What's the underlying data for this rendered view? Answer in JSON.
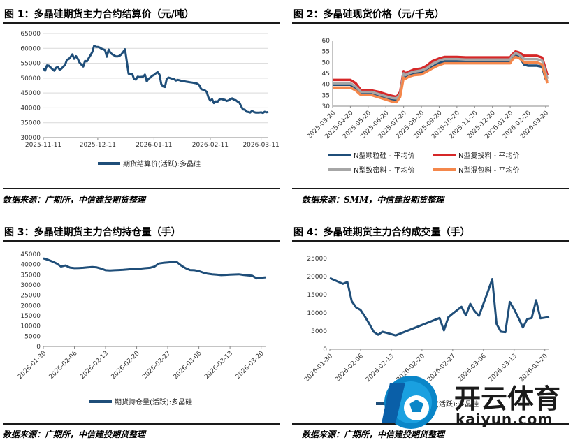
{
  "panels": [
    {
      "title": "图 1：多晶硅期货主力合约结算价（元/吨）",
      "source": "数据来源：广期所，中信建投期货整理"
    },
    {
      "title": "图 2：多晶硅现货价格（元/千克）",
      "source": "数据来源：SMM，中信建投期货整理"
    },
    {
      "title": "图 3：多晶硅期货主力合约持仓量（手）",
      "source": "数据来源：广期所，中信建投期货整理"
    },
    {
      "title": "图 4：多晶硅期货主力合约成交量（手）",
      "source": "数据来源：广期所，中信建投期货整理"
    }
  ],
  "watermark": {
    "brand": "开云体育",
    "url": "kaiyun.com",
    "logo_letter": "K"
  },
  "chart_data": [
    {
      "type": "line",
      "ylim": [
        30000,
        65000
      ],
      "yticks": [
        30000,
        35000,
        40000,
        45000,
        50000,
        55000,
        60000,
        65000
      ],
      "x_tick_labels": [
        "2025-11-11",
        "2025-12-11",
        "2026-01-11",
        "2026-02-11",
        "2026-03-11"
      ],
      "x_range_days": [
        0,
        124
      ],
      "x_ticks_days": [
        0,
        30,
        61,
        92,
        120
      ],
      "series": [
        {
          "name": "期货结算价(活跃):多晶硅",
          "color": "#1f4e79",
          "x_days": [
            0,
            1,
            2,
            3,
            5,
            6,
            7,
            8,
            9,
            10,
            12,
            13,
            14,
            15,
            16,
            17,
            18,
            19,
            20,
            22,
            23,
            24,
            25,
            26,
            27,
            28,
            29,
            30,
            31,
            32,
            34,
            35,
            36,
            37,
            38,
            40,
            41,
            42,
            43,
            44,
            45,
            47,
            48,
            49,
            50,
            51,
            52,
            53,
            55,
            56,
            57,
            58,
            59,
            60,
            61,
            62,
            63,
            64,
            65,
            66,
            67,
            68,
            69,
            71,
            72,
            73,
            74,
            75,
            76,
            77,
            78,
            79,
            80,
            81,
            82,
            83,
            84,
            85,
            86,
            87,
            88,
            89,
            90,
            91,
            92,
            93,
            94,
            95,
            96,
            97,
            98,
            99,
            100,
            101,
            102,
            103,
            104,
            105,
            106,
            107,
            108,
            109,
            110,
            111,
            112,
            113,
            114,
            115,
            116,
            117,
            118,
            119,
            120,
            121,
            122,
            123,
            124
          ],
          "values": [
            53300,
            52500,
            54300,
            54200,
            53000,
            52500,
            53500,
            53800,
            52800,
            53200,
            54500,
            56200,
            56400,
            57100,
            58000,
            56500,
            57400,
            56500,
            55200,
            53900,
            55800,
            55600,
            56700,
            57700,
            58800,
            60900,
            60500,
            60500,
            60300,
            59900,
            59400,
            57200,
            59600,
            58500,
            58000,
            57300,
            57300,
            57500,
            58000,
            58800,
            59700,
            51500,
            51400,
            51500,
            49700,
            49500,
            50500,
            50400,
            50500,
            51200,
            48900,
            49800,
            50200,
            50800,
            51100,
            51600,
            52000,
            51200,
            48000,
            47200,
            47000,
            49700,
            50200,
            49800,
            49700,
            49200,
            49400,
            49300,
            49100,
            49000,
            48900,
            48800,
            48700,
            48600,
            48500,
            48400,
            48300,
            48100,
            47600,
            46300,
            46100,
            45900,
            45400,
            43500,
            42400,
            42900,
            41600,
            42200,
            42000,
            42800,
            43000,
            42800,
            42700,
            42300,
            42500,
            42900,
            43200,
            42700,
            42600,
            42100,
            41800,
            40600,
            39500,
            39400,
            38700,
            38600,
            38400,
            39000,
            38600,
            38400,
            38400,
            38400,
            38500,
            38300,
            38700,
            38500,
            38600
          ]
        }
      ]
    },
    {
      "type": "line",
      "ylim": [
        30,
        60
      ],
      "yticks": [
        30,
        35,
        40,
        45,
        50,
        55,
        60
      ],
      "x_tick_labels": [
        "2025-03-20",
        "2025-04-20",
        "2025-05-20",
        "2025-06-20",
        "2025-07-20",
        "2025-08-20",
        "2025-09-20",
        "2025-10-20",
        "2025-11-20",
        "2025-12-20",
        "2026-01-20",
        "2026-02-20",
        "2026-03-20"
      ],
      "x_range": [
        0,
        12.2
      ],
      "series": [
        {
          "name": "N型颗粒硅 - 平均价",
          "color": "#1f4e79",
          "x": [
            0,
            0.3,
            0.6,
            1.0,
            1.3,
            1.6,
            2.0,
            2.2,
            2.6,
            3.0,
            3.3,
            3.6,
            3.8,
            4.0,
            4.1,
            4.3,
            4.6,
            5.0,
            5.3,
            5.6,
            6.0,
            6.3,
            6.6,
            7.0,
            7.5,
            8.0,
            8.5,
            9.0,
            9.5,
            10.0,
            10.1,
            10.3,
            10.5,
            10.8,
            11.0,
            11.5,
            11.8,
            12.0,
            12.1
          ],
          "values": [
            39.8,
            39.8,
            39.8,
            39.8,
            38.5,
            35.8,
            35.8,
            35.8,
            34.8,
            33.5,
            33.2,
            32.5,
            35.0,
            44.0,
            43.5,
            44.5,
            45.2,
            45.3,
            46.5,
            47.8,
            49.8,
            50.5,
            50.5,
            50.5,
            50.5,
            50.5,
            50.5,
            50.5,
            50.5,
            50.5,
            52.0,
            53.5,
            52.8,
            49.0,
            48.5,
            48.5,
            48.0,
            42.5,
            41.5
          ]
        },
        {
          "name": "N型复投料 - 平均价",
          "color": "#d62728",
          "x": [
            0,
            0.3,
            0.6,
            1.0,
            1.3,
            1.6,
            2.0,
            2.2,
            2.6,
            3.0,
            3.3,
            3.6,
            3.8,
            4.0,
            4.1,
            4.3,
            4.6,
            5.0,
            5.3,
            5.6,
            6.0,
            6.3,
            6.6,
            7.0,
            7.5,
            8.0,
            8.5,
            9.0,
            9.5,
            10.0,
            10.1,
            10.3,
            10.5,
            10.8,
            11.0,
            11.5,
            11.8,
            12.0,
            12.1
          ],
          "values": [
            42.0,
            42.0,
            42.0,
            42.0,
            40.5,
            37.2,
            37.2,
            37.2,
            36.5,
            35.5,
            34.8,
            34.2,
            36.5,
            46.0,
            45.0,
            45.8,
            46.8,
            47.2,
            48.5,
            50.5,
            51.8,
            52.5,
            52.5,
            52.5,
            52.3,
            52.3,
            52.3,
            52.3,
            52.3,
            52.3,
            53.5,
            55.0,
            54.5,
            53.0,
            53.0,
            53.0,
            52.2,
            47.0,
            44.0
          ]
        },
        {
          "name": "N型致密料 - 平均价",
          "color": "#a6a6a6",
          "x": [
            0,
            0.3,
            0.6,
            1.0,
            1.3,
            1.6,
            2.0,
            2.2,
            2.6,
            3.0,
            3.3,
            3.6,
            3.8,
            4.0,
            4.1,
            4.3,
            4.6,
            5.0,
            5.3,
            5.6,
            6.0,
            6.3,
            6.6,
            7.0,
            7.5,
            8.0,
            8.5,
            9.0,
            9.5,
            10.0,
            10.1,
            10.3,
            10.5,
            10.8,
            11.0,
            11.5,
            11.8,
            12.0,
            12.1
          ],
          "values": [
            40.5,
            40.5,
            40.5,
            40.5,
            39.0,
            36.5,
            36.5,
            36.5,
            35.5,
            34.5,
            33.8,
            33.5,
            35.5,
            45.0,
            44.2,
            45.0,
            45.8,
            46.3,
            47.3,
            49.2,
            50.8,
            51.5,
            51.5,
            51.5,
            51.3,
            51.3,
            51.3,
            51.3,
            51.3,
            51.3,
            52.8,
            54.2,
            53.6,
            51.5,
            51.5,
            51.5,
            50.8,
            45.2,
            42.5
          ]
        },
        {
          "name": "N型混包料 - 平均价",
          "color": "#f4874b",
          "x": [
            0,
            0.3,
            0.6,
            1.0,
            1.3,
            1.6,
            2.0,
            2.2,
            2.6,
            3.0,
            3.3,
            3.6,
            3.8,
            4.0,
            4.1,
            4.3,
            4.6,
            5.0,
            5.3,
            5.6,
            6.0,
            6.3,
            6.6,
            7.0,
            7.5,
            8.0,
            8.5,
            9.0,
            9.5,
            10.0,
            10.1,
            10.3,
            10.5,
            10.8,
            11.0,
            11.5,
            11.8,
            12.0,
            12.1
          ],
          "values": [
            38.5,
            38.5,
            38.5,
            38.5,
            37.2,
            35.0,
            35.0,
            35.0,
            34.0,
            33.0,
            32.2,
            31.8,
            34.2,
            43.0,
            42.5,
            43.5,
            44.2,
            44.5,
            45.8,
            47.2,
            48.8,
            49.6,
            49.6,
            49.6,
            49.6,
            49.6,
            49.6,
            49.6,
            49.6,
            49.6,
            51.0,
            52.5,
            52.0,
            50.0,
            50.0,
            50.0,
            49.0,
            43.0,
            40.5
          ]
        }
      ]
    },
    {
      "type": "line",
      "ylim": [
        0,
        45000
      ],
      "yticks": [
        0,
        5000,
        10000,
        15000,
        20000,
        25000,
        30000,
        35000,
        40000,
        45000
      ],
      "x_tick_labels": [
        "2026-01-30",
        "2026-02-06",
        "2026-02-13",
        "2026-02-20",
        "2026-02-27",
        "2026-03-06",
        "2026-03-13",
        "2026-03-20"
      ],
      "x_range_days": [
        0,
        50
      ],
      "x_ticks_days": [
        0,
        7,
        14,
        21,
        28,
        35,
        42,
        49
      ],
      "series": [
        {
          "name": "期货持仓量(活跃):多晶硅",
          "color": "#1f4e79",
          "x_days": [
            0,
            1,
            2,
            3,
            4,
            5,
            6,
            7,
            8,
            9,
            10,
            11,
            12,
            13,
            14,
            15,
            16,
            17,
            18,
            19,
            20,
            21,
            22,
            23,
            24,
            25,
            26,
            27,
            28,
            29,
            30,
            31,
            32,
            33,
            34,
            35,
            36,
            37,
            38,
            39,
            40,
            41,
            42,
            43,
            44,
            45,
            46,
            47,
            48,
            49,
            50
          ],
          "values": [
            43000,
            42300,
            41500,
            40500,
            39000,
            39500,
            38500,
            38200,
            38300,
            38400,
            38600,
            38800,
            38600,
            38000,
            37200,
            37100,
            37200,
            37300,
            37400,
            37600,
            37800,
            37900,
            38000,
            38200,
            38400,
            39000,
            40500,
            40800,
            41000,
            41200,
            41300,
            39500,
            38200,
            37300,
            37200,
            36800,
            36000,
            35500,
            35200,
            35000,
            34800,
            34900,
            35000,
            35100,
            35200,
            34900,
            34700,
            34500,
            33200,
            33500,
            33700
          ]
        }
      ]
    },
    {
      "type": "line",
      "ylim": [
        0,
        25000
      ],
      "yticks": [
        0,
        5000,
        10000,
        15000,
        20000,
        25000
      ],
      "x_tick_labels": [
        "2026-01-30",
        "2026-02-06",
        "2026-02-13",
        "2026-02-20",
        "2026-02-27",
        "2026-03-06",
        "2026-03-13",
        "2026-03-20"
      ],
      "x_range_days": [
        0,
        50
      ],
      "x_ticks_days": [
        0,
        7,
        14,
        21,
        28,
        35,
        42,
        49
      ],
      "series": [
        {
          "name": "期货成交量(活跃):多晶硅",
          "color": "#1f4e79",
          "x_days": [
            0,
            3,
            4,
            5,
            6,
            7,
            8,
            9,
            10,
            11,
            12,
            13,
            15,
            25,
            26,
            27,
            28,
            30,
            31,
            32,
            33,
            34,
            35,
            36,
            37,
            38,
            39,
            40,
            41,
            42,
            43,
            44,
            45,
            46,
            47,
            48,
            49,
            50
          ],
          "values": [
            19600,
            18000,
            18500,
            13200,
            11500,
            10800,
            9000,
            7000,
            4800,
            4000,
            4800,
            4500,
            3800,
            8600,
            5200,
            8800,
            9800,
            11700,
            9300,
            12500,
            10500,
            9200,
            12500,
            15800,
            19300,
            7000,
            4800,
            4700,
            13000,
            11000,
            8600,
            6000,
            8300,
            8600,
            13500,
            8500,
            8700,
            8900
          ]
        }
      ]
    }
  ]
}
